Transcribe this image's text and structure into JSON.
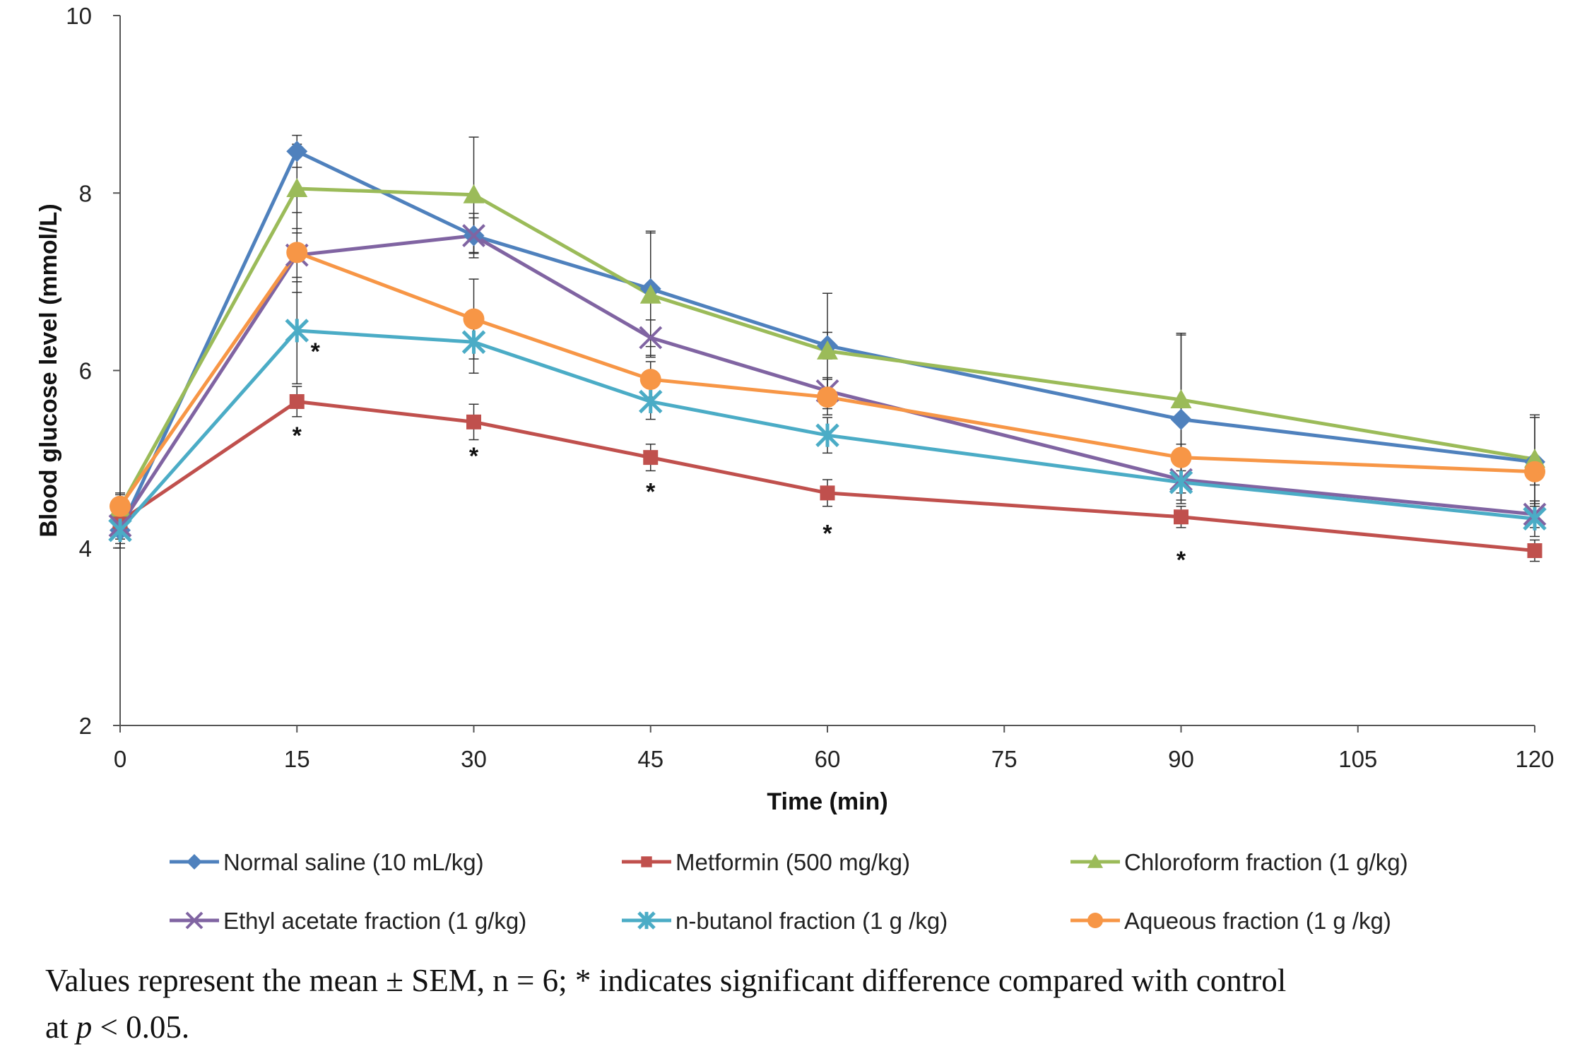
{
  "chart_data": {
    "type": "line",
    "title": "",
    "xlabel": "Time (min)",
    "ylabel": "Blood glucose level (mmol/L)",
    "xlim": [
      0,
      120
    ],
    "ylim": [
      2,
      10
    ],
    "xticks": [
      0,
      15,
      30,
      45,
      60,
      75,
      90,
      105,
      120
    ],
    "yticks": [
      2,
      4,
      6,
      8,
      10
    ],
    "x": [
      0,
      15,
      30,
      45,
      60,
      90,
      120
    ],
    "series": [
      {
        "name": "Normal saline (10 mL/kg)",
        "color": "#4F81BD",
        "marker": "diamond",
        "values": [
          4.2,
          8.47,
          7.52,
          6.92,
          6.28,
          5.45,
          4.97
        ],
        "errors": [
          0.2,
          0.18,
          0.2,
          0.65,
          0.15,
          0.95,
          0.5
        ]
      },
      {
        "name": "Metformin (500 mg/kg)",
        "color": "#C0504D",
        "marker": "square",
        "values": [
          4.3,
          5.65,
          5.42,
          5.02,
          4.62,
          4.35,
          3.97
        ],
        "errors": [
          0.15,
          0.17,
          0.2,
          0.15,
          0.15,
          0.12,
          0.12
        ]
      },
      {
        "name": "Chloroform fraction (1 g/kg)",
        "color": "#9BBB59",
        "marker": "triangle",
        "values": [
          4.45,
          8.05,
          7.98,
          6.85,
          6.22,
          5.67,
          5.0
        ],
        "errors": [
          0.15,
          0.5,
          0.65,
          0.7,
          0.65,
          0.75,
          0.5
        ]
      },
      {
        "name": "Ethyl acetate fraction (1 g/kg)",
        "color": "#8064A2",
        "marker": "cross",
        "values": [
          4.25,
          7.3,
          7.52,
          6.37,
          5.77,
          4.77,
          4.38
        ],
        "errors": [
          0.15,
          0.3,
          0.25,
          0.2,
          0.15,
          0.15,
          0.15
        ]
      },
      {
        "name": "n-butanol fraction (1 g /kg)",
        "color": "#4BACC6",
        "marker": "star",
        "values": [
          4.2,
          6.45,
          6.32,
          5.65,
          5.27,
          4.74,
          4.33
        ],
        "errors": [
          0.15,
          0.6,
          0.35,
          0.2,
          0.2,
          0.2,
          0.2
        ]
      },
      {
        "name": "Aqueous fraction (1 g /kg)",
        "color": "#F79646",
        "marker": "circle",
        "values": [
          4.47,
          7.33,
          6.58,
          5.9,
          5.7,
          5.02,
          4.86
        ],
        "errors": [
          0.15,
          0.45,
          0.45,
          0.2,
          0.2,
          0.15,
          0.15
        ]
      }
    ],
    "annotations": [
      {
        "text": "*",
        "x": 15,
        "y": 6.3
      },
      {
        "text": "*",
        "x": 15,
        "y": 5.35
      },
      {
        "text": "*",
        "x": 30,
        "y": 5.12
      },
      {
        "text": "*",
        "x": 45,
        "y": 4.72
      },
      {
        "text": "*",
        "x": 60,
        "y": 4.25
      },
      {
        "text": "*",
        "x": 90,
        "y": 3.95
      }
    ],
    "legend_position": "bottom"
  },
  "caption": {
    "line1": "Values represent the mean ± SEM, n = 6; * indicates significant difference compared with control",
    "line2_prefix": "at ",
    "line2_p": "p",
    "line2_suffix": " < 0.05."
  }
}
